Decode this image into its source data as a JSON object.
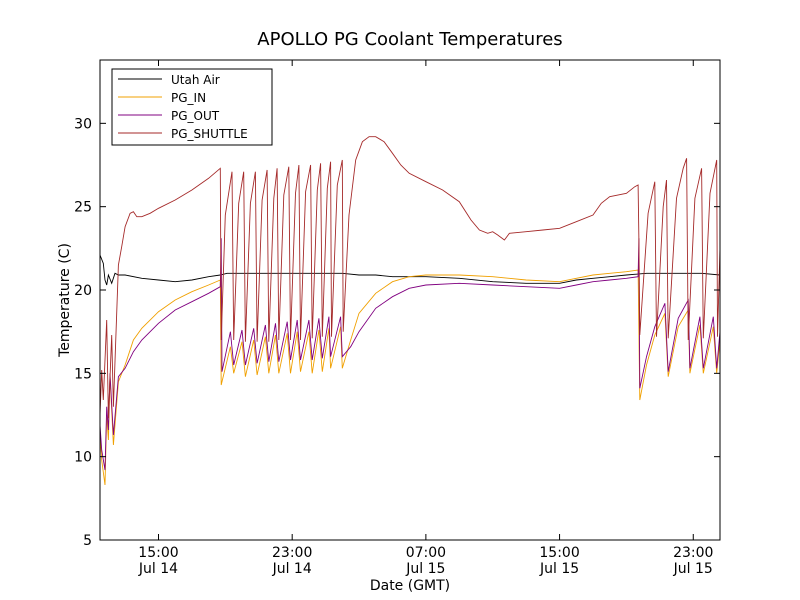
{
  "chart_data": {
    "type": "line",
    "title": "APOLLO PG Coolant Temperatures",
    "xlabel": "Date (GMT)",
    "ylabel": "Temperature (C)",
    "x_unit": "hours since Jul 14 00:00 GMT",
    "xlim": [
      11.5,
      48.6
    ],
    "ylim": [
      5,
      33.8
    ],
    "yticks": [
      5,
      10,
      15,
      20,
      25,
      30
    ],
    "xticks": [
      {
        "x": 15,
        "time": "15:00",
        "date": "Jul 14"
      },
      {
        "x": 23,
        "time": "23:00",
        "date": "Jul 14"
      },
      {
        "x": 31,
        "time": "07:00",
        "date": "Jul 15"
      },
      {
        "x": 39,
        "time": "15:00",
        "date": "Jul 15"
      },
      {
        "x": 47,
        "time": "23:00",
        "date": "Jul 15"
      }
    ],
    "legend_location": "top-left",
    "series": [
      {
        "name": "Utah Air",
        "color": "#000000",
        "points": [
          [
            11.5,
            22.1
          ],
          [
            11.7,
            21.6
          ],
          [
            11.8,
            20.6
          ],
          [
            11.9,
            20.3
          ],
          [
            12.0,
            20.9
          ],
          [
            12.2,
            20.4
          ],
          [
            12.4,
            21.0
          ],
          [
            12.6,
            20.9
          ],
          [
            13.0,
            20.9
          ],
          [
            14.0,
            20.7
          ],
          [
            15.0,
            20.6
          ],
          [
            16.0,
            20.5
          ],
          [
            17.0,
            20.6
          ],
          [
            18.0,
            20.8
          ],
          [
            18.7,
            20.9
          ],
          [
            19.1,
            21.0
          ],
          [
            19.5,
            21.0
          ],
          [
            20.0,
            21.0
          ],
          [
            20.5,
            21.0
          ],
          [
            21.0,
            21.0
          ],
          [
            21.5,
            21.0
          ],
          [
            22.0,
            21.0
          ],
          [
            22.5,
            21.0
          ],
          [
            23.0,
            21.0
          ],
          [
            23.5,
            21.0
          ],
          [
            24.0,
            21.0
          ],
          [
            25.0,
            21.0
          ],
          [
            26.0,
            21.0
          ],
          [
            27.0,
            20.9
          ],
          [
            28.0,
            20.9
          ],
          [
            29.0,
            20.8
          ],
          [
            31.0,
            20.8
          ],
          [
            33.0,
            20.7
          ],
          [
            35.0,
            20.5
          ],
          [
            37.0,
            20.4
          ],
          [
            39.0,
            20.4
          ],
          [
            40.0,
            20.6
          ],
          [
            41.0,
            20.7
          ],
          [
            42.0,
            20.8
          ],
          [
            43.0,
            20.9
          ],
          [
            44.2,
            21.0
          ],
          [
            44.8,
            21.0
          ],
          [
            45.5,
            21.0
          ],
          [
            46.5,
            21.0
          ],
          [
            47.5,
            21.0
          ],
          [
            48.6,
            20.9
          ]
        ]
      },
      {
        "name": "PG_IN",
        "color": "#f0a000",
        "points": [
          [
            11.5,
            11.5
          ],
          [
            11.6,
            9.8
          ],
          [
            11.8,
            8.3
          ],
          [
            11.9,
            12.5
          ],
          [
            12.0,
            11.0
          ],
          [
            12.1,
            14.8
          ],
          [
            12.3,
            10.7
          ],
          [
            12.6,
            14.5
          ],
          [
            13.0,
            15.5
          ],
          [
            13.5,
            17.0
          ],
          [
            14.0,
            17.7
          ],
          [
            15.0,
            18.7
          ],
          [
            16.0,
            19.4
          ],
          [
            17.0,
            19.9
          ],
          [
            18.0,
            20.3
          ],
          [
            18.7,
            20.6
          ],
          [
            18.75,
            14.3
          ],
          [
            19.3,
            16.6
          ],
          [
            19.5,
            15.0
          ],
          [
            20.0,
            16.9
          ],
          [
            20.2,
            14.8
          ],
          [
            20.7,
            17.0
          ],
          [
            20.9,
            14.9
          ],
          [
            21.4,
            17.2
          ],
          [
            21.6,
            15.0
          ],
          [
            22.0,
            17.3
          ],
          [
            22.2,
            15.0
          ],
          [
            22.7,
            17.4
          ],
          [
            22.9,
            15.0
          ],
          [
            23.3,
            17.5
          ],
          [
            23.5,
            15.1
          ],
          [
            24.0,
            17.5
          ],
          [
            24.2,
            15.0
          ],
          [
            24.6,
            17.6
          ],
          [
            24.8,
            15.1
          ],
          [
            25.2,
            17.7
          ],
          [
            25.3,
            15.3
          ],
          [
            25.9,
            17.8
          ],
          [
            26.0,
            15.3
          ],
          [
            26.5,
            17.0
          ],
          [
            27.0,
            18.6
          ],
          [
            28.0,
            19.8
          ],
          [
            29.0,
            20.5
          ],
          [
            30.0,
            20.8
          ],
          [
            31.0,
            20.9
          ],
          [
            33.0,
            20.9
          ],
          [
            35.0,
            20.8
          ],
          [
            37.0,
            20.6
          ],
          [
            39.0,
            20.5
          ],
          [
            40.0,
            20.7
          ],
          [
            41.0,
            20.9
          ],
          [
            42.0,
            21.0
          ],
          [
            43.0,
            21.1
          ],
          [
            43.7,
            21.2
          ],
          [
            43.8,
            13.4
          ],
          [
            44.2,
            15.5
          ],
          [
            44.7,
            17.3
          ],
          [
            45.3,
            18.6
          ],
          [
            45.5,
            14.8
          ],
          [
            46.1,
            17.8
          ],
          [
            46.7,
            18.8
          ],
          [
            46.8,
            15.0
          ],
          [
            47.4,
            17.9
          ],
          [
            47.6,
            15.0
          ],
          [
            48.2,
            17.8
          ],
          [
            48.4,
            15.0
          ],
          [
            48.6,
            17.0
          ]
        ]
      },
      {
        "name": "PG_OUT",
        "color": "#800080",
        "points": [
          [
            11.5,
            11.9
          ],
          [
            11.6,
            10.4
          ],
          [
            11.8,
            9.2
          ],
          [
            11.9,
            13.0
          ],
          [
            12.0,
            11.6
          ],
          [
            12.1,
            15.0
          ],
          [
            12.3,
            11.3
          ],
          [
            12.6,
            14.8
          ],
          [
            13.0,
            15.3
          ],
          [
            13.5,
            16.3
          ],
          [
            14.0,
            17.0
          ],
          [
            15.0,
            18.0
          ],
          [
            16.0,
            18.8
          ],
          [
            17.0,
            19.3
          ],
          [
            18.0,
            19.8
          ],
          [
            18.7,
            20.2
          ],
          [
            18.75,
            23.1
          ],
          [
            18.8,
            15.1
          ],
          [
            19.3,
            17.5
          ],
          [
            19.5,
            15.5
          ],
          [
            20.0,
            17.6
          ],
          [
            20.2,
            15.5
          ],
          [
            20.7,
            17.7
          ],
          [
            20.9,
            15.6
          ],
          [
            21.4,
            17.9
          ],
          [
            21.6,
            15.7
          ],
          [
            22.0,
            18.0
          ],
          [
            22.2,
            15.7
          ],
          [
            22.7,
            18.1
          ],
          [
            22.9,
            15.8
          ],
          [
            23.3,
            18.2
          ],
          [
            23.5,
            15.8
          ],
          [
            24.0,
            18.2
          ],
          [
            24.2,
            15.8
          ],
          [
            24.6,
            18.3
          ],
          [
            24.8,
            15.9
          ],
          [
            25.2,
            18.4
          ],
          [
            25.3,
            16.0
          ],
          [
            25.9,
            18.4
          ],
          [
            26.0,
            16.0
          ],
          [
            26.5,
            16.6
          ],
          [
            27.0,
            17.5
          ],
          [
            28.0,
            18.9
          ],
          [
            29.0,
            19.6
          ],
          [
            30.0,
            20.1
          ],
          [
            31.0,
            20.3
          ],
          [
            33.0,
            20.4
          ],
          [
            35.0,
            20.3
          ],
          [
            37.0,
            20.2
          ],
          [
            39.0,
            20.1
          ],
          [
            40.0,
            20.3
          ],
          [
            41.0,
            20.5
          ],
          [
            42.0,
            20.6
          ],
          [
            43.0,
            20.7
          ],
          [
            43.7,
            20.8
          ],
          [
            43.75,
            23.1
          ],
          [
            43.8,
            14.1
          ],
          [
            44.2,
            16.0
          ],
          [
            44.7,
            17.8
          ],
          [
            45.3,
            19.2
          ],
          [
            45.5,
            15.1
          ],
          [
            46.1,
            18.3
          ],
          [
            46.7,
            19.4
          ],
          [
            46.8,
            15.3
          ],
          [
            47.4,
            18.4
          ],
          [
            47.6,
            15.3
          ],
          [
            48.2,
            18.4
          ],
          [
            48.4,
            15.3
          ],
          [
            48.6,
            17.5
          ]
        ]
      },
      {
        "name": "PG_SHUTTLE",
        "color": "#a52a2a",
        "points": [
          [
            11.5,
            12.5
          ],
          [
            11.6,
            15.2
          ],
          [
            11.7,
            13.4
          ],
          [
            11.9,
            18.2
          ],
          [
            12.0,
            12.3
          ],
          [
            12.2,
            17.3
          ],
          [
            12.3,
            13.0
          ],
          [
            12.6,
            21.5
          ],
          [
            12.8,
            22.6
          ],
          [
            13.0,
            23.8
          ],
          [
            13.3,
            24.6
          ],
          [
            13.5,
            24.7
          ],
          [
            13.7,
            24.4
          ],
          [
            14.0,
            24.4
          ],
          [
            14.5,
            24.6
          ],
          [
            15.0,
            24.9
          ],
          [
            16.0,
            25.4
          ],
          [
            17.0,
            26.0
          ],
          [
            18.0,
            26.7
          ],
          [
            18.7,
            27.3
          ],
          [
            18.75,
            17.0
          ],
          [
            19.0,
            24.5
          ],
          [
            19.4,
            27.1
          ],
          [
            19.5,
            17.0
          ],
          [
            19.8,
            25.2
          ],
          [
            20.1,
            27.1
          ],
          [
            20.2,
            16.9
          ],
          [
            20.5,
            25.2
          ],
          [
            20.8,
            27.1
          ],
          [
            20.9,
            16.9
          ],
          [
            21.2,
            25.4
          ],
          [
            21.5,
            27.2
          ],
          [
            21.6,
            16.9
          ],
          [
            21.9,
            25.5
          ],
          [
            22.1,
            27.3
          ],
          [
            22.2,
            17.0
          ],
          [
            22.5,
            25.7
          ],
          [
            22.8,
            27.4
          ],
          [
            22.9,
            17.0
          ],
          [
            23.2,
            25.8
          ],
          [
            23.4,
            27.5
          ],
          [
            23.5,
            17.0
          ],
          [
            23.8,
            25.9
          ],
          [
            24.1,
            27.5
          ],
          [
            24.2,
            17.1
          ],
          [
            24.5,
            26.0
          ],
          [
            24.7,
            27.6
          ],
          [
            24.8,
            17.2
          ],
          [
            25.1,
            26.1
          ],
          [
            25.3,
            27.7
          ],
          [
            25.35,
            17.2
          ],
          [
            25.7,
            26.3
          ],
          [
            26.0,
            27.8
          ],
          [
            26.05,
            17.5
          ],
          [
            26.4,
            24.5
          ],
          [
            26.8,
            27.8
          ],
          [
            27.2,
            28.9
          ],
          [
            27.6,
            29.2
          ],
          [
            28.0,
            29.2
          ],
          [
            28.5,
            28.9
          ],
          [
            29.0,
            28.2
          ],
          [
            29.5,
            27.5
          ],
          [
            30.0,
            27.0
          ],
          [
            31.0,
            26.5
          ],
          [
            32.0,
            26.0
          ],
          [
            33.0,
            25.3
          ],
          [
            33.7,
            24.2
          ],
          [
            34.2,
            23.6
          ],
          [
            34.7,
            23.4
          ],
          [
            35.0,
            23.5
          ],
          [
            35.3,
            23.3
          ],
          [
            35.7,
            23.0
          ],
          [
            36.0,
            23.4
          ],
          [
            37.0,
            23.5
          ],
          [
            38.0,
            23.6
          ],
          [
            39.0,
            23.7
          ],
          [
            40.0,
            24.1
          ],
          [
            41.0,
            24.5
          ],
          [
            41.5,
            25.2
          ],
          [
            42.0,
            25.6
          ],
          [
            43.0,
            25.8
          ],
          [
            43.5,
            26.2
          ],
          [
            43.7,
            26.3
          ],
          [
            43.75,
            23.0
          ],
          [
            43.8,
            17.3
          ],
          [
            44.3,
            24.6
          ],
          [
            44.7,
            26.5
          ],
          [
            44.8,
            17.2
          ],
          [
            45.2,
            25.0
          ],
          [
            45.4,
            26.6
          ],
          [
            45.5,
            17.1
          ],
          [
            46.0,
            25.5
          ],
          [
            46.4,
            27.3
          ],
          [
            46.6,
            27.9
          ],
          [
            46.7,
            17.0
          ],
          [
            47.1,
            25.5
          ],
          [
            47.5,
            27.3
          ],
          [
            47.6,
            17.1
          ],
          [
            48.0,
            25.8
          ],
          [
            48.4,
            27.8
          ],
          [
            48.45,
            17.2
          ],
          [
            48.6,
            22.5
          ]
        ]
      }
    ]
  }
}
